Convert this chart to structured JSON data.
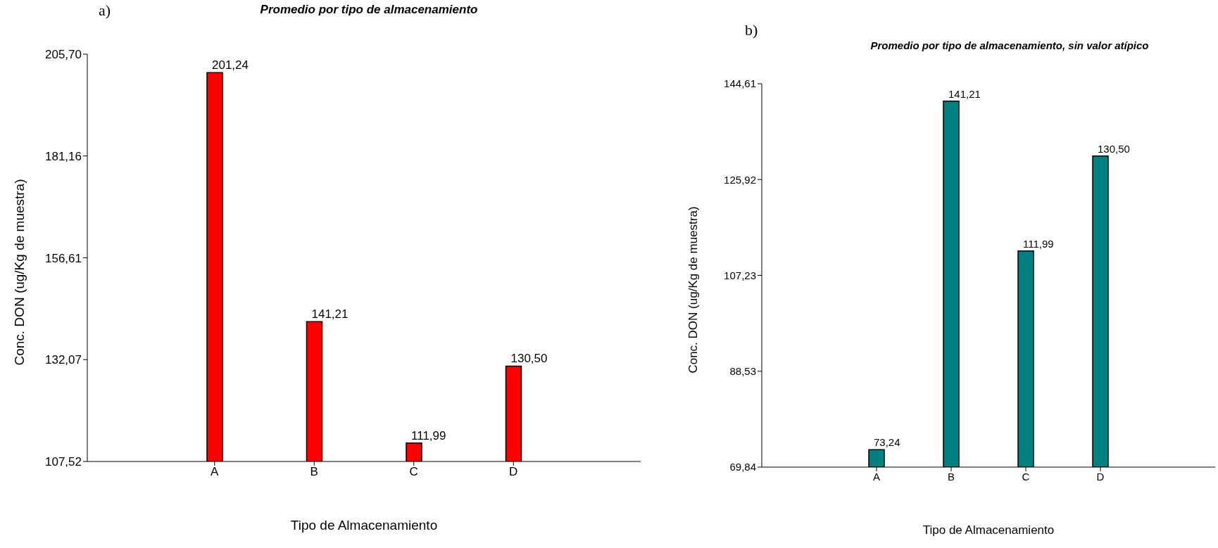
{
  "chart_data": [
    {
      "type": "bar",
      "title": "Promedio por tipo de almacenamiento",
      "annotations": [
        "a)"
      ],
      "xlabel": "Tipo de Almacenamiento",
      "ylabel": "Conc. DON (ug/Kg de muestra)",
      "categories": [
        "A",
        "B",
        "C",
        "D"
      ],
      "values": [
        201.24,
        141.21,
        111.99,
        130.5
      ],
      "value_labels": [
        "201,24",
        "141,21",
        "111,99",
        "130,50"
      ],
      "color": "#ff0000",
      "ylim": [
        107.52,
        205.7
      ],
      "yticks": [
        {
          "value": 107.52,
          "label": "107,52"
        },
        {
          "value": 132.07,
          "label": "132,07"
        },
        {
          "value": 156.61,
          "label": "156,61"
        },
        {
          "value": 181.16,
          "label": "181,16"
        },
        {
          "value": 205.7,
          "label": "205,70"
        }
      ],
      "grid": false,
      "legend": false
    },
    {
      "type": "bar",
      "title": "Promedio por tipo de almacenamiento, sin valor atípico",
      "annotations": [
        "b)"
      ],
      "xlabel": "Tipo de Almacenamiento",
      "ylabel": "Conc. DON (ug/Kg de muestra)",
      "categories": [
        "A",
        "B",
        "C",
        "D"
      ],
      "values": [
        73.24,
        141.21,
        111.99,
        130.5
      ],
      "value_labels": [
        "73,24",
        "141,21",
        "111,99",
        "130,50"
      ],
      "color": "#008080",
      "ylim": [
        69.84,
        144.61
      ],
      "yticks": [
        {
          "value": 69.84,
          "label": "69,84"
        },
        {
          "value": 88.53,
          "label": "88,53"
        },
        {
          "value": 107.23,
          "label": "107,23"
        },
        {
          "value": 125.92,
          "label": "125,92"
        },
        {
          "value": 144.61,
          "label": "144,61"
        }
      ],
      "grid": false,
      "legend": false
    }
  ]
}
